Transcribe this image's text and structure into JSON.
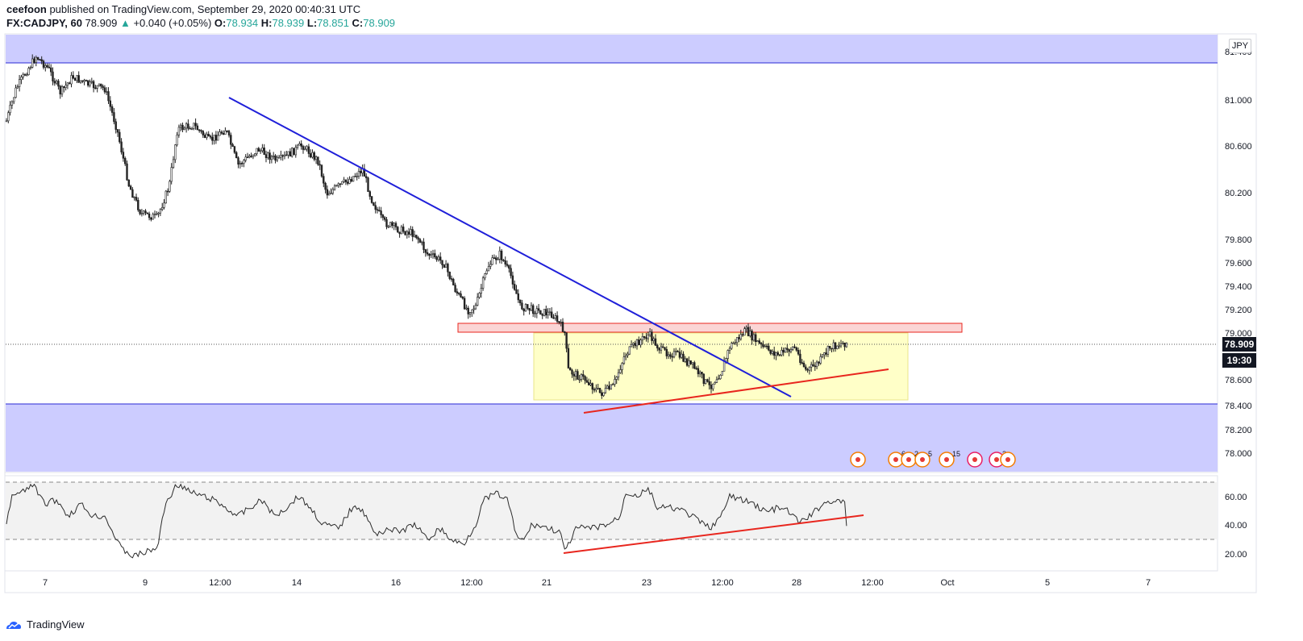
{
  "header": {
    "author": "ceefoon",
    "published_text": " published on TradingView.com, September 29, 2020 00:40:31 UTC",
    "symbol": "FX:CADJPY, 60",
    "last": "78.909",
    "change": "+0.040 (+0.05%)",
    "open_label": "O:",
    "open": "78.934",
    "high_label": "H:",
    "high": "78.939",
    "low_label": "L:",
    "low": "78.851",
    "close_label": "C:",
    "close": "78.909"
  },
  "price_axis": {
    "currency": "JPY",
    "labels": [
      "81.400",
      "81.000",
      "80.600",
      "80.200",
      "79.800",
      "79.600",
      "79.400",
      "79.200",
      "79.000",
      "78.600",
      "78.400",
      "78.200",
      "78.000"
    ],
    "last_price_badge": "78.909",
    "countdown_badge": "19:30"
  },
  "rsi_axis": {
    "labels": [
      "60.00",
      "40.00",
      "20.00"
    ]
  },
  "time_axis": {
    "labels": [
      "7",
      "9",
      "12:00",
      "14",
      "16",
      "12:00",
      "21",
      "23",
      "12:00",
      "28",
      "12:00",
      "Oct",
      "5",
      "7"
    ]
  },
  "event_markers": {
    "counts": [
      "6",
      "2",
      "5",
      "15",
      "3"
    ]
  },
  "colors": {
    "zone_blue": "#ccccff",
    "zone_line": "#2a2ad6",
    "trend_blue": "#1f1fd9",
    "trend_red": "#e8261e",
    "rect_red": "#f08080",
    "rect_yellow": "#ffffc8",
    "rsi_bg": "#f2f2f2"
  },
  "footer": {
    "brand": "TradingView"
  }
}
